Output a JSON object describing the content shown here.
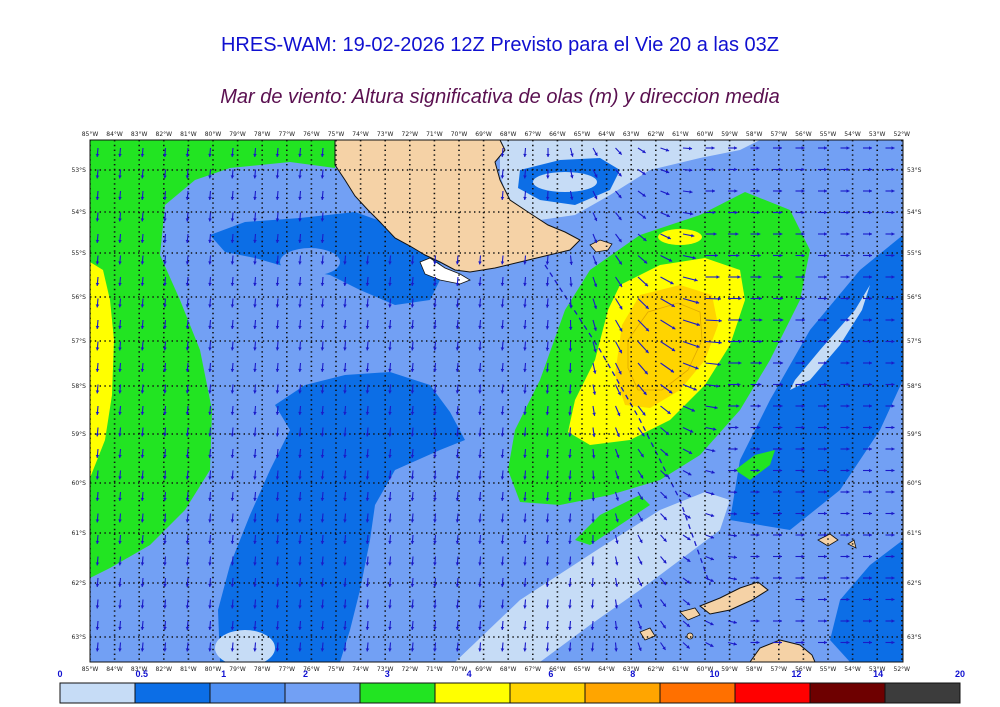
{
  "title": "HRES-WAM: 19-02-2026 12Z Previsto para el Vie 20 a las 03Z",
  "subtitle": "Mar de viento: Altura significativa de olas (m) y direccion media",
  "lon_labels": [
    "85°W",
    "84°W",
    "83°W",
    "82°W",
    "81°W",
    "80°W",
    "79°W",
    "78°W",
    "77°W",
    "76°W",
    "75°W",
    "74°W",
    "73°W",
    "72°W",
    "71°W",
    "70°W",
    "69°W",
    "68°W",
    "67°W",
    "66°W",
    "65°W",
    "64°W",
    "63°W",
    "62°W",
    "61°W",
    "60°W",
    "59°W",
    "58°W",
    "57°W",
    "56°W",
    "55°W",
    "54°W",
    "53°W",
    "52°W"
  ],
  "lat_labels": [
    "53°S",
    "54°S",
    "55°S",
    "56°S",
    "57°S",
    "58°S",
    "59°S",
    "60°S",
    "61°S",
    "62°S",
    "63°S"
  ],
  "colorbar": {
    "ticks": [
      "0",
      "0.5",
      "1",
      "2",
      "3",
      "4",
      "6",
      "8",
      "10",
      "12",
      "14",
      "20"
    ],
    "colors": [
      "#c6dcf6",
      "#0c6ee6",
      "#4e8ff2",
      "#72a0f4",
      "#22e422",
      "#ffff00",
      "#ffd400",
      "#ffa500",
      "#ff7000",
      "#ff0000",
      "#6e0000",
      "#3c3c3c"
    ]
  },
  "colors": {
    "ocean_lightest": "#c6dcf6",
    "ocean_mid": "#0c6ee6",
    "ocean_light": "#72a0f4",
    "green": "#22e422",
    "yellow": "#ffff00",
    "gold": "#ffd400",
    "land": "#f5d2a6",
    "arrow": "#1a1ac8"
  }
}
